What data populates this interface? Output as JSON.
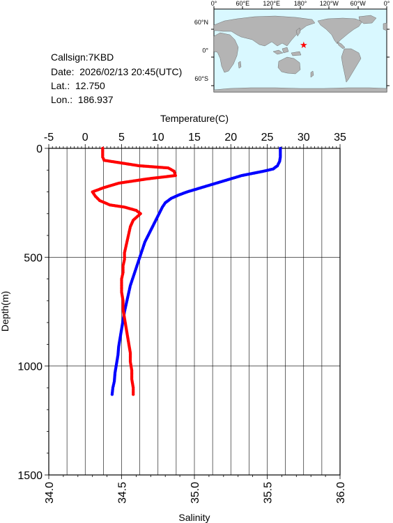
{
  "station": {
    "callsign_label": "Callsign:7KBD",
    "date_label": "Date:  2026/02/13 20:45(UTC)",
    "lat_label": "Lat.:  12.750",
    "lon_label": "Lon.:  186.937"
  },
  "map": {
    "lon_ticks": [
      "0°",
      "60°E",
      "120°E",
      "180°",
      "120°W",
      "60°W",
      "0°"
    ],
    "lat_ticks": [
      "60°N",
      "0°",
      "60°S"
    ],
    "ocean_color": "#d9f8ff",
    "land_color": "#b4b4b4",
    "marker": {
      "lat": 12.75,
      "lon": 186.937,
      "color": "#ff0000"
    }
  },
  "chart_data": {
    "type": "scatter",
    "xlabel_top": "Temperature(C)",
    "xlabel_bottom": "Salinity",
    "ylabel": "Depth(m)",
    "ylim": [
      0,
      1500
    ],
    "y_inverted": true,
    "y_ticks": [
      "0",
      "500",
      "1000",
      "1500"
    ],
    "x_top_lim": [
      -5,
      35
    ],
    "x_top_ticks": [
      "-5",
      "0",
      "5",
      "10",
      "15",
      "20",
      "25",
      "30",
      "35"
    ],
    "x_bottom_lim": [
      34.0,
      36.0
    ],
    "x_bottom_ticks": [
      "34.0",
      "34.5",
      "35.0",
      "35.5",
      "36.0"
    ],
    "grid": true,
    "series": [
      {
        "quantity": "temperature",
        "axis": "top",
        "color": "#0000ff",
        "points": [
          [
            26.8,
            0
          ],
          [
            26.8,
            20
          ],
          [
            26.8,
            40
          ],
          [
            26.7,
            60
          ],
          [
            26.4,
            80
          ],
          [
            25.8,
            95
          ],
          [
            24.5,
            105
          ],
          [
            23,
            115
          ],
          [
            21.5,
            125
          ],
          [
            20,
            140
          ],
          [
            18.5,
            155
          ],
          [
            17,
            170
          ],
          [
            15.5,
            185
          ],
          [
            14,
            200
          ],
          [
            12.8,
            215
          ],
          [
            11.8,
            230
          ],
          [
            11,
            250
          ],
          [
            10.6,
            270
          ],
          [
            10.3,
            290
          ],
          [
            10,
            310
          ],
          [
            9.7,
            330
          ],
          [
            9.4,
            350
          ],
          [
            9.1,
            370
          ],
          [
            8.8,
            390
          ],
          [
            8.5,
            410
          ],
          [
            8.2,
            430
          ],
          [
            8,
            450
          ],
          [
            7.7,
            480
          ],
          [
            7.4,
            510
          ],
          [
            7.1,
            540
          ],
          [
            6.8,
            570
          ],
          [
            6.5,
            600
          ],
          [
            6.2,
            630
          ],
          [
            6,
            660
          ],
          [
            5.8,
            690
          ],
          [
            5.6,
            720
          ],
          [
            5.4,
            750
          ],
          [
            5.2,
            790
          ],
          [
            5,
            830
          ],
          [
            4.8,
            870
          ],
          [
            4.6,
            910
          ],
          [
            4.5,
            950
          ],
          [
            4.3,
            990
          ],
          [
            4.1,
            1030
          ],
          [
            4,
            1070
          ],
          [
            3.8,
            1100
          ],
          [
            3.7,
            1130
          ]
        ]
      },
      {
        "quantity": "salinity",
        "axis": "bottom",
        "color": "#ff0000",
        "points": [
          [
            34.37,
            0
          ],
          [
            34.37,
            20
          ],
          [
            34.37,
            40
          ],
          [
            34.38,
            55
          ],
          [
            34.62,
            80
          ],
          [
            34.82,
            90
          ],
          [
            34.86,
            105
          ],
          [
            34.87,
            125
          ],
          [
            34.68,
            140
          ],
          [
            34.48,
            160
          ],
          [
            34.38,
            180
          ],
          [
            34.3,
            200
          ],
          [
            34.32,
            220
          ],
          [
            34.35,
            240
          ],
          [
            34.42,
            260
          ],
          [
            34.52,
            270
          ],
          [
            34.6,
            285
          ],
          [
            34.63,
            300
          ],
          [
            34.58,
            330
          ],
          [
            34.56,
            360
          ],
          [
            34.55,
            390
          ],
          [
            34.54,
            420
          ],
          [
            34.53,
            450
          ],
          [
            34.52,
            480
          ],
          [
            34.52,
            510
          ],
          [
            34.51,
            540
          ],
          [
            34.51,
            570
          ],
          [
            34.5,
            600
          ],
          [
            34.5,
            630
          ],
          [
            34.5,
            660
          ],
          [
            34.51,
            700
          ],
          [
            34.51,
            740
          ],
          [
            34.52,
            780
          ],
          [
            34.53,
            820
          ],
          [
            34.54,
            860
          ],
          [
            34.55,
            900
          ],
          [
            34.56,
            940
          ],
          [
            34.56,
            980
          ],
          [
            34.57,
            1020
          ],
          [
            34.57,
            1060
          ],
          [
            34.58,
            1100
          ],
          [
            34.58,
            1130
          ]
        ]
      }
    ]
  }
}
